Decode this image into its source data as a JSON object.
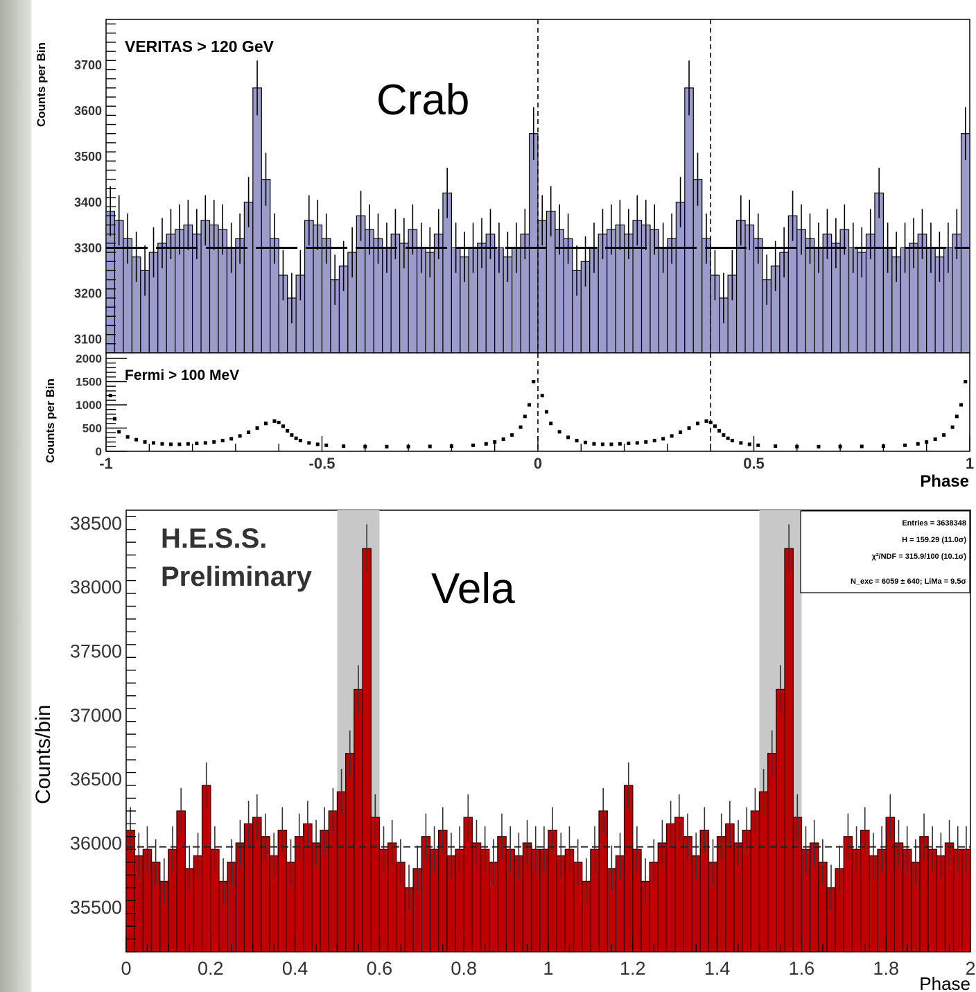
{
  "chart_data": [
    {
      "id": "veritas",
      "type": "bar",
      "panel_label": "Crab",
      "legend_text": "VERITAS > 120 GeV",
      "ylabel": "Counts per Bin",
      "xlim": [
        -1,
        1
      ],
      "ylim": [
        3070,
        3800
      ],
      "yticks": [
        3100,
        3200,
        3300,
        3400,
        3500,
        3600,
        3700
      ],
      "baseline": 3300,
      "dashed_lines_x": [
        0,
        0.4
      ],
      "fill_color": "#9c9ccb",
      "bin_width": 0.02,
      "x": [
        -0.99,
        -0.97,
        -0.95,
        -0.93,
        -0.91,
        -0.89,
        -0.87,
        -0.85,
        -0.83,
        -0.81,
        -0.79,
        -0.77,
        -0.75,
        -0.73,
        -0.71,
        -0.69,
        -0.67,
        -0.65,
        -0.63,
        -0.61,
        -0.59,
        -0.57,
        -0.55,
        -0.53,
        -0.51,
        -0.49,
        -0.47,
        -0.45,
        -0.43,
        -0.41,
        -0.39,
        -0.37,
        -0.35,
        -0.33,
        -0.31,
        -0.29,
        -0.27,
        -0.25,
        -0.23,
        -0.21,
        -0.19,
        -0.17,
        -0.15,
        -0.13,
        -0.11,
        -0.09,
        -0.07,
        -0.05,
        -0.03,
        -0.01,
        0.01,
        0.03,
        0.05,
        0.07,
        0.09,
        0.11,
        0.13,
        0.15,
        0.17,
        0.19,
        0.21,
        0.23,
        0.25,
        0.27,
        0.29,
        0.31,
        0.33,
        0.35,
        0.37,
        0.39,
        0.41,
        0.43,
        0.45,
        0.47,
        0.49,
        0.51,
        0.53,
        0.55,
        0.57,
        0.59,
        0.61,
        0.63,
        0.65,
        0.67,
        0.69,
        0.71,
        0.73,
        0.75,
        0.77,
        0.79,
        0.81,
        0.83,
        0.85,
        0.87,
        0.89,
        0.91,
        0.93,
        0.95,
        0.97,
        0.99
      ],
      "values": [
        3380,
        3360,
        3320,
        3280,
        3250,
        3290,
        3310,
        3330,
        3340,
        3350,
        3330,
        3360,
        3350,
        3340,
        3300,
        3320,
        3400,
        3650,
        3450,
        3320,
        3240,
        3190,
        3240,
        3360,
        3350,
        3320,
        3230,
        3260,
        3290,
        3370,
        3340,
        3320,
        3300,
        3330,
        3310,
        3340,
        3300,
        3290,
        3330,
        3420,
        3300,
        3280,
        3300,
        3310,
        3330,
        3300,
        3280,
        3300,
        3330,
        3550,
        3360,
        3380,
        3340,
        3320,
        3250,
        3270,
        3300,
        3330,
        3340,
        3350,
        3330,
        3360,
        3350,
        3340,
        3300,
        3320,
        3400,
        3650,
        3450,
        3320,
        3240,
        3190,
        3240,
        3360,
        3350,
        3320,
        3230,
        3260,
        3290,
        3370,
        3340,
        3320,
        3300,
        3330,
        3310,
        3340,
        3300,
        3290,
        3330,
        3420,
        3300,
        3280,
        3300,
        3310,
        3330,
        3300,
        3280,
        3300,
        3330,
        3550
      ],
      "errors": [
        55,
        55,
        55,
        55,
        55,
        55,
        55,
        55,
        55,
        55,
        55,
        55,
        55,
        55,
        55,
        55,
        55,
        60,
        58,
        55,
        55,
        55,
        55,
        55,
        55,
        55,
        55,
        55,
        55,
        55,
        55,
        55,
        55,
        55,
        55,
        55,
        55,
        55,
        55,
        55,
        55,
        55,
        55,
        55,
        55,
        55,
        55,
        55,
        55,
        58,
        55,
        55,
        55,
        55,
        55,
        55,
        55,
        55,
        55,
        55,
        55,
        55,
        55,
        55,
        55,
        55,
        55,
        60,
        58,
        55,
        55,
        55,
        55,
        55,
        55,
        55,
        55,
        55,
        55,
        55,
        55,
        55,
        55,
        55,
        55,
        55,
        55,
        55,
        55,
        55,
        55,
        55,
        55,
        55,
        55,
        55,
        55,
        55,
        55,
        58
      ]
    },
    {
      "id": "fermi",
      "type": "scatter",
      "legend_text": "Fermi > 100 MeV",
      "ylabel": "Counts per Bin",
      "xlabel": "Phase",
      "xlim": [
        -1,
        1
      ],
      "ylim": [
        0,
        2000
      ],
      "yticks": [
        0,
        500,
        1000,
        1500,
        2000
      ],
      "xticks": [
        -1,
        -0.5,
        0,
        0.5,
        1
      ],
      "xticklabels": [
        "-1",
        "-0.5",
        "0",
        "0.5",
        "1"
      ],
      "dashed_lines_x": [
        0,
        0.4
      ],
      "x": [
        -0.99,
        -0.98,
        -0.97,
        -0.95,
        -0.93,
        -0.91,
        -0.89,
        -0.87,
        -0.85,
        -0.83,
        -0.81,
        -0.79,
        -0.77,
        -0.75,
        -0.73,
        -0.71,
        -0.69,
        -0.67,
        -0.65,
        -0.63,
        -0.61,
        -0.6,
        -0.59,
        -0.58,
        -0.57,
        -0.56,
        -0.55,
        -0.53,
        -0.51,
        -0.49,
        -0.45,
        -0.4,
        -0.35,
        -0.3,
        -0.25,
        -0.2,
        -0.15,
        -0.12,
        -0.1,
        -0.08,
        -0.06,
        -0.04,
        -0.03,
        -0.02,
        -0.01,
        0.01,
        0.02,
        0.03,
        0.05,
        0.07,
        0.09,
        0.11,
        0.13,
        0.15,
        0.17,
        0.19,
        0.21,
        0.23,
        0.25,
        0.27,
        0.29,
        0.31,
        0.33,
        0.35,
        0.37,
        0.39,
        0.4,
        0.41,
        0.42,
        0.43,
        0.44,
        0.45,
        0.47,
        0.49,
        0.51,
        0.55,
        0.6,
        0.65,
        0.7,
        0.75,
        0.8,
        0.85,
        0.88,
        0.9,
        0.92,
        0.94,
        0.96,
        0.97,
        0.98,
        0.99
      ],
      "values": [
        1200,
        700,
        420,
        310,
        250,
        200,
        180,
        160,
        150,
        150,
        160,
        170,
        180,
        200,
        230,
        270,
        330,
        410,
        500,
        600,
        650,
        620,
        540,
        440,
        350,
        280,
        230,
        180,
        150,
        130,
        110,
        100,
        100,
        100,
        105,
        110,
        130,
        160,
        200,
        260,
        350,
        520,
        750,
        1000,
        1500,
        1200,
        850,
        600,
        420,
        300,
        230,
        190,
        160,
        150,
        150,
        160,
        170,
        180,
        200,
        230,
        270,
        330,
        410,
        500,
        600,
        650,
        620,
        540,
        440,
        350,
        280,
        230,
        180,
        150,
        130,
        110,
        100,
        100,
        100,
        105,
        110,
        130,
        160,
        200,
        260,
        350,
        520,
        750,
        1000,
        1500
      ]
    },
    {
      "id": "hess",
      "type": "bar",
      "panel_label": "Vela",
      "legend_text": [
        "H.E.S.S.",
        "Preliminary"
      ],
      "ylabel": "Counts/bin",
      "xlabel": "Phase",
      "xlim": [
        0,
        2
      ],
      "ylim": [
        35150,
        38600
      ],
      "yticks": [
        35500,
        36000,
        36500,
        37000,
        37500,
        38000,
        38500
      ],
      "xticks": [
        0,
        0.2,
        0.4,
        0.6,
        0.8,
        1,
        1.2,
        1.4,
        1.6,
        1.8,
        2
      ],
      "xticklabels": [
        "0",
        "0.2",
        "0.4",
        "0.6",
        "0.8",
        "1",
        "1.2",
        "1.4",
        "1.6",
        "1.8",
        "2"
      ],
      "baseline": 35970,
      "fill_color": "#c00000",
      "shaded_bands_x": [
        [
          0.5,
          0.6
        ],
        [
          1.5,
          1.6
        ]
      ],
      "stats_box": [
        "Entries = 3638348",
        "H = 159.29 (11.0σ)",
        "χ²/NDF = 315.9/100 (10.1σ)",
        "N_exc = 6059 ± 640; LiMa = 9.5σ"
      ],
      "bin_width": 0.02,
      "x": [
        0.01,
        0.03,
        0.05,
        0.07,
        0.09,
        0.11,
        0.13,
        0.15,
        0.17,
        0.19,
        0.21,
        0.23,
        0.25,
        0.27,
        0.29,
        0.31,
        0.33,
        0.35,
        0.37,
        0.39,
        0.41,
        0.43,
        0.45,
        0.47,
        0.49,
        0.51,
        0.53,
        0.55,
        0.57,
        0.59,
        0.61,
        0.63,
        0.65,
        0.67,
        0.69,
        0.71,
        0.73,
        0.75,
        0.77,
        0.79,
        0.81,
        0.83,
        0.85,
        0.87,
        0.89,
        0.91,
        0.93,
        0.95,
        0.97,
        0.99,
        1.01,
        1.03,
        1.05,
        1.07,
        1.09,
        1.11,
        1.13,
        1.15,
        1.17,
        1.19,
        1.21,
        1.23,
        1.25,
        1.27,
        1.29,
        1.31,
        1.33,
        1.35,
        1.37,
        1.39,
        1.41,
        1.43,
        1.45,
        1.47,
        1.49,
        1.51,
        1.53,
        1.55,
        1.57,
        1.59,
        1.61,
        1.63,
        1.65,
        1.67,
        1.69,
        1.71,
        1.73,
        1.75,
        1.77,
        1.79,
        1.81,
        1.83,
        1.85,
        1.87,
        1.89,
        1.91,
        1.93,
        1.95,
        1.97,
        1.99
      ],
      "values": [
        36100,
        35900,
        35950,
        35850,
        35700,
        35950,
        36250,
        35800,
        35900,
        36450,
        35950,
        35700,
        35850,
        36000,
        36150,
        36200,
        36050,
        35900,
        36100,
        35850,
        36050,
        36150,
        36000,
        36100,
        36250,
        36400,
        36700,
        37200,
        38300,
        36200,
        35950,
        36000,
        35850,
        35650,
        35800,
        36050,
        35950,
        36100,
        35900,
        35950,
        36200,
        36000,
        35950,
        35850,
        36050,
        35950,
        35900,
        36000,
        35950,
        35950,
        36100,
        35900,
        35950,
        35850,
        35700,
        35950,
        36250,
        35800,
        35900,
        36450,
        35950,
        35700,
        35850,
        36000,
        36150,
        36200,
        36050,
        35900,
        36100,
        35850,
        36050,
        36150,
        36000,
        36100,
        36250,
        36400,
        36700,
        37200,
        38300,
        36200,
        35950,
        36000,
        35850,
        35650,
        35800,
        36050,
        35950,
        36100,
        35900,
        35950,
        36200,
        36000,
        35950,
        35850,
        36050,
        35950,
        35900,
        36000,
        35950,
        35950
      ],
      "errors": [
        180,
        180,
        180,
        180,
        180,
        180,
        180,
        180,
        180,
        180,
        180,
        180,
        180,
        180,
        180,
        180,
        180,
        180,
        180,
        180,
        180,
        180,
        180,
        180,
        180,
        180,
        180,
        190,
        190,
        180,
        180,
        180,
        180,
        180,
        180,
        180,
        180,
        180,
        180,
        180,
        180,
        180,
        180,
        180,
        180,
        180,
        180,
        180,
        180,
        180,
        180,
        180,
        180,
        180,
        180,
        180,
        180,
        180,
        180,
        180,
        180,
        180,
        180,
        180,
        180,
        180,
        180,
        180,
        180,
        180,
        180,
        180,
        180,
        180,
        180,
        180,
        180,
        190,
        190,
        180,
        180,
        180,
        180,
        180,
        180,
        180,
        180,
        180,
        180,
        180,
        180,
        180,
        180,
        180,
        180,
        180,
        180,
        180,
        180,
        180
      ]
    }
  ]
}
